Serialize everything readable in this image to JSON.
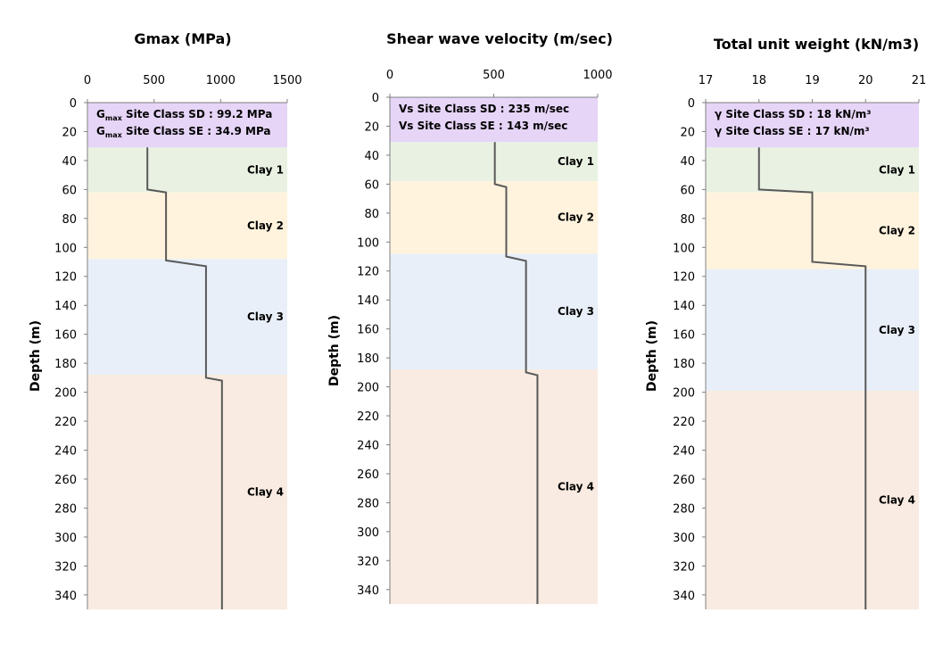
{
  "chart_data": [
    {
      "type": "line",
      "title": "Gmax (MPa)",
      "xlabel": "",
      "ylabel": "Depth (m)",
      "xlim": [
        0,
        1500
      ],
      "ylim": [
        0,
        350
      ],
      "y_inverted": true,
      "x_axis_position": "top",
      "xticks": [
        0,
        500,
        1000,
        1500
      ],
      "yticks": [
        0,
        20,
        40,
        60,
        80,
        100,
        120,
        140,
        160,
        180,
        200,
        220,
        240,
        260,
        280,
        300,
        320,
        340
      ],
      "colors": {
        "line": "#595959",
        "top": "#e6d5f7",
        "clay1": "#e9f2e2",
        "clay2": "#fff3dd",
        "clay3": "#e8eff8",
        "clay4": "#f9ebe1"
      },
      "layers": [
        {
          "name": "",
          "top": 0,
          "bottom": 31,
          "color_key": "top"
        },
        {
          "name": "Clay 1",
          "top": 31,
          "bottom": 62,
          "color_key": "clay1"
        },
        {
          "name": "Clay 2",
          "top": 62,
          "bottom": 108,
          "color_key": "clay2"
        },
        {
          "name": "Clay 3",
          "top": 108,
          "bottom": 188,
          "color_key": "clay3"
        },
        {
          "name": "Clay 4",
          "top": 188,
          "bottom": 350,
          "color_key": "clay4"
        }
      ],
      "series": [
        {
          "x": [
            450,
            450,
            590,
            590,
            890,
            890,
            1010,
            1010
          ],
          "y": [
            31,
            60,
            62,
            109,
            113,
            190,
            192,
            350
          ]
        }
      ],
      "annotations": [
        {
          "prefix": "G",
          "sub": "max",
          "text": " Site Class SD : 99.2 MPa"
        },
        {
          "prefix": "G",
          "sub": "max",
          "text": " Site Class SE : 34.9 MPa"
        }
      ]
    },
    {
      "type": "line",
      "title": "Shear wave velocity (m/sec)",
      "xlabel": "",
      "ylabel": "Depth (m)",
      "xlim": [
        0,
        1000
      ],
      "ylim": [
        0,
        350
      ],
      "y_inverted": true,
      "x_axis_position": "top",
      "xticks": [
        0,
        500,
        1000
      ],
      "yticks": [
        0,
        20,
        40,
        60,
        80,
        100,
        120,
        140,
        160,
        180,
        200,
        220,
        240,
        260,
        280,
        300,
        320,
        340
      ],
      "colors": {
        "line": "#595959",
        "top": "#e6d5f7",
        "clay1": "#e9f2e2",
        "clay2": "#fff3dd",
        "clay3": "#e8eff8",
        "clay4": "#f9ebe1"
      },
      "layers": [
        {
          "name": "",
          "top": 0,
          "bottom": 31,
          "color_key": "top"
        },
        {
          "name": "Clay 1",
          "top": 31,
          "bottom": 58,
          "color_key": "clay1"
        },
        {
          "name": "Clay 2",
          "top": 58,
          "bottom": 108,
          "color_key": "clay2"
        },
        {
          "name": "Clay 3",
          "top": 108,
          "bottom": 188,
          "color_key": "clay3"
        },
        {
          "name": "Clay 4",
          "top": 188,
          "bottom": 350,
          "color_key": "clay4"
        }
      ],
      "series": [
        {
          "x": [
            505,
            505,
            560,
            560,
            655,
            655,
            710,
            710
          ],
          "y": [
            31,
            60,
            62,
            110,
            113,
            190,
            192,
            350
          ]
        }
      ],
      "annotations": [
        {
          "prefix": "Vs",
          "sub": "",
          "text": " Site Class SD : 235 m/sec"
        },
        {
          "prefix": "Vs",
          "sub": "",
          "text": " Site Class SE : 143 m/sec"
        }
      ]
    },
    {
      "type": "line",
      "title": "Total unit weight (kN/m3)",
      "xlabel": "",
      "ylabel": "Depth (m)",
      "xlim": [
        17,
        21
      ],
      "ylim": [
        0,
        350
      ],
      "y_inverted": true,
      "x_axis_position": "top",
      "xticks": [
        17,
        18,
        19,
        20,
        21
      ],
      "yticks": [
        0,
        20,
        40,
        60,
        80,
        100,
        120,
        140,
        160,
        180,
        200,
        220,
        240,
        260,
        280,
        300,
        320,
        340
      ],
      "colors": {
        "line": "#595959",
        "top": "#e6d5f7",
        "clay1": "#e9f2e2",
        "clay2": "#fff3dd",
        "clay3": "#e8eff8",
        "clay4": "#f9ebe1"
      },
      "layers": [
        {
          "name": "",
          "top": 0,
          "bottom": 31,
          "color_key": "top"
        },
        {
          "name": "Clay 1",
          "top": 31,
          "bottom": 62,
          "color_key": "clay1"
        },
        {
          "name": "Clay 2",
          "top": 62,
          "bottom": 115,
          "color_key": "clay2"
        },
        {
          "name": "Clay 3",
          "top": 115,
          "bottom": 199,
          "color_key": "clay3"
        },
        {
          "name": "Clay 4",
          "top": 199,
          "bottom": 350,
          "color_key": "clay4"
        }
      ],
      "series": [
        {
          "x": [
            18,
            18,
            19,
            19,
            20,
            20
          ],
          "y": [
            31,
            60,
            62,
            110,
            113,
            350
          ]
        }
      ],
      "annotations": [
        {
          "prefix": "γ",
          "sub": "",
          "text": " Site Class SD : 18 kN/m³"
        },
        {
          "prefix": "γ",
          "sub": "",
          "text": " Site Class SE : 17 kN/m³"
        }
      ]
    }
  ]
}
